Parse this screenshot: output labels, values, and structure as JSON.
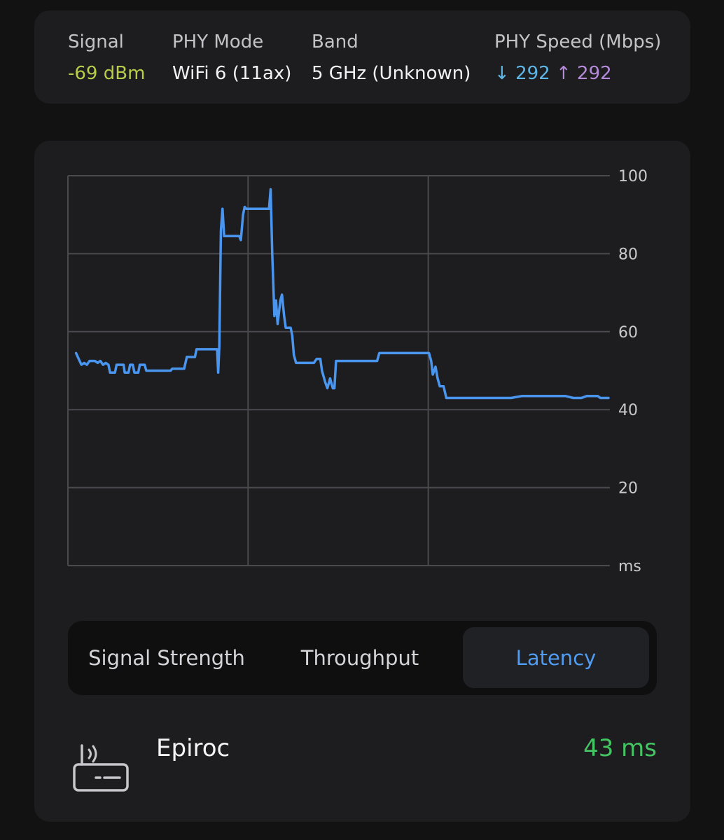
{
  "info": {
    "signal": {
      "label": "Signal",
      "value": "-69 dBm",
      "color": "#b9cc4a"
    },
    "phy_mode": {
      "label": "PHY Mode",
      "value": "WiFi 6 (11ax)"
    },
    "band": {
      "label": "Band",
      "value": "5 GHz (Unknown)"
    },
    "phy_speed": {
      "label": "PHY Speed (Mbps)",
      "down_arrow": "↓",
      "down_value": "292",
      "down_color": "#5db6e6",
      "up_arrow": "↑",
      "up_value": "292",
      "up_color": "#b48ad9"
    }
  },
  "chart_data": {
    "type": "line",
    "y_ticks": [
      "100",
      "80",
      "60",
      "40",
      "20",
      "ms"
    ],
    "y_tick_values": [
      100,
      80,
      60,
      40,
      20,
      0
    ],
    "ylim": [
      0,
      100
    ],
    "xlim": [
      0,
      100
    ],
    "grid": true,
    "line_color": "#4a95ee",
    "series": [
      {
        "values": [
          [
            1.5,
            54.5
          ],
          [
            2,
            53
          ],
          [
            2.5,
            51.5
          ],
          [
            3,
            52
          ],
          [
            3.5,
            51.5
          ],
          [
            4,
            52.5
          ],
          [
            5,
            52.5
          ],
          [
            5.5,
            52
          ],
          [
            6,
            52.5
          ],
          [
            6.5,
            51.5
          ],
          [
            7,
            52
          ],
          [
            7.5,
            51.5
          ],
          [
            7.8,
            49.5
          ],
          [
            8.7,
            49.5
          ],
          [
            9,
            51.5
          ],
          [
            10.3,
            51.5
          ],
          [
            10.5,
            49.5
          ],
          [
            11.2,
            49.5
          ],
          [
            11.5,
            51.5
          ],
          [
            12,
            51.5
          ],
          [
            12.3,
            49.5
          ],
          [
            13,
            49.5
          ],
          [
            13.3,
            51.5
          ],
          [
            14.2,
            51.5
          ],
          [
            14.5,
            50
          ],
          [
            19,
            50
          ],
          [
            19.3,
            50.5
          ],
          [
            21.5,
            50.5
          ],
          [
            22,
            53.5
          ],
          [
            23.5,
            53.5
          ],
          [
            23.8,
            55.5
          ],
          [
            27.6,
            55.5
          ],
          [
            27.8,
            49.5
          ],
          [
            28,
            56
          ],
          [
            28.3,
            86
          ],
          [
            28.6,
            91.5
          ],
          [
            28.9,
            84.5
          ],
          [
            31.7,
            84.5
          ],
          [
            32,
            83.5
          ],
          [
            32.4,
            90
          ],
          [
            32.7,
            92
          ],
          [
            33,
            91.5
          ],
          [
            37.2,
            91.5
          ],
          [
            37.5,
            96.5
          ],
          [
            37.8,
            80
          ],
          [
            38.2,
            64
          ],
          [
            38.5,
            68
          ],
          [
            38.8,
            62
          ],
          [
            39.3,
            68
          ],
          [
            39.6,
            69.5
          ],
          [
            40,
            64
          ],
          [
            40.3,
            61
          ],
          [
            41.2,
            61
          ],
          [
            41.5,
            59
          ],
          [
            41.8,
            54
          ],
          [
            42.2,
            52
          ],
          [
            45.5,
            52
          ],
          [
            46,
            53
          ],
          [
            46.7,
            53
          ],
          [
            47,
            50
          ],
          [
            47.6,
            47
          ],
          [
            48,
            45.5
          ],
          [
            48.5,
            48
          ],
          [
            49,
            45.5
          ],
          [
            49.3,
            45.5
          ],
          [
            49.6,
            52.5
          ],
          [
            57.2,
            52.5
          ],
          [
            57.6,
            54.5
          ],
          [
            66.8,
            54.5
          ],
          [
            67.2,
            52.5
          ],
          [
            67.5,
            49
          ],
          [
            68,
            51
          ],
          [
            68.4,
            48
          ],
          [
            68.8,
            46
          ],
          [
            69.5,
            46
          ],
          [
            70,
            43
          ],
          [
            82,
            43
          ],
          [
            84,
            43.5
          ],
          [
            92,
            43.5
          ],
          [
            93.5,
            43
          ],
          [
            95,
            43
          ],
          [
            96,
            43.5
          ],
          [
            98,
            43.5
          ],
          [
            98.5,
            43
          ],
          [
            100,
            43
          ]
        ]
      }
    ]
  },
  "tabs": [
    {
      "label": "Signal Strength"
    },
    {
      "label": "Throughput"
    },
    {
      "label": "Latency",
      "selected": true,
      "color": "#4f9cf2"
    }
  ],
  "network": {
    "name": "Epiroc",
    "latency": "43 ms",
    "latency_color": "#45c463",
    "icon": "router-icon"
  }
}
